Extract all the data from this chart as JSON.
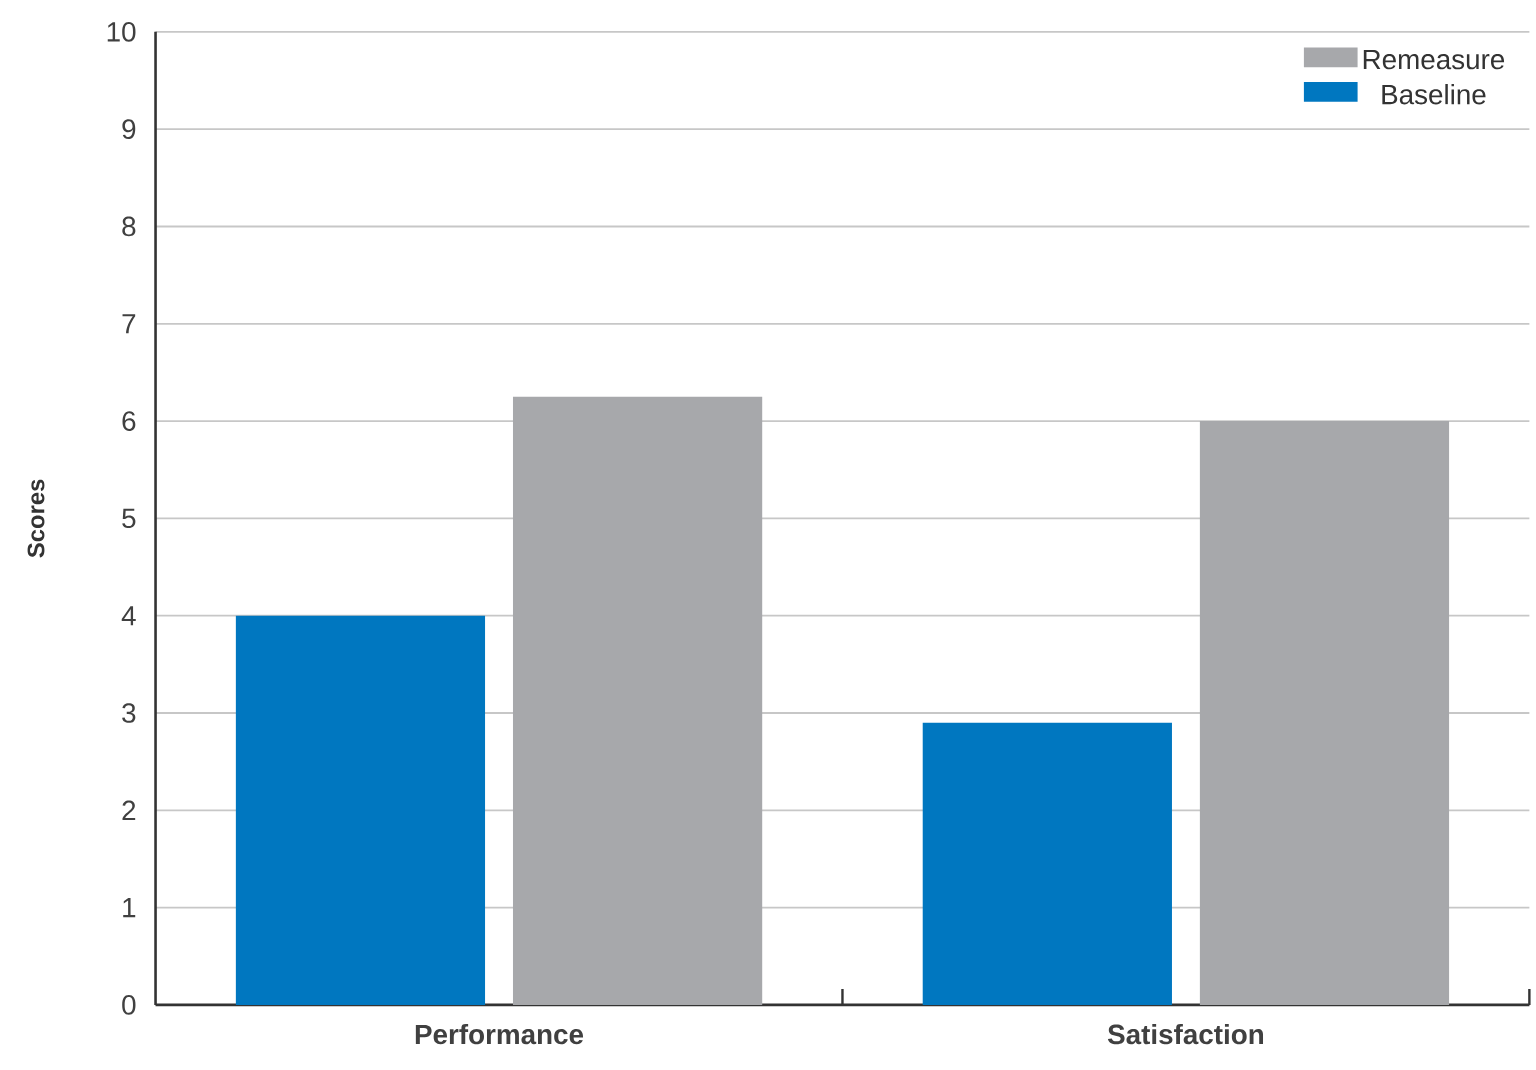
{
  "chart_data": {
    "type": "bar",
    "ylabel": "Scores",
    "categories": [
      "Performance",
      "Satisfaction"
    ],
    "series": [
      {
        "name": "Baseline",
        "color": "#0077c0",
        "values": [
          4,
          2.9
        ]
      },
      {
        "name": "Remeasure",
        "color": "#a7a8ab",
        "values": [
          6.25,
          6
        ]
      }
    ],
    "ylim": [
      0,
      10
    ],
    "yticks": [
      0,
      1,
      2,
      3,
      4,
      5,
      6,
      7,
      8,
      9,
      10
    ],
    "grid": "y",
    "legend": "top right"
  }
}
